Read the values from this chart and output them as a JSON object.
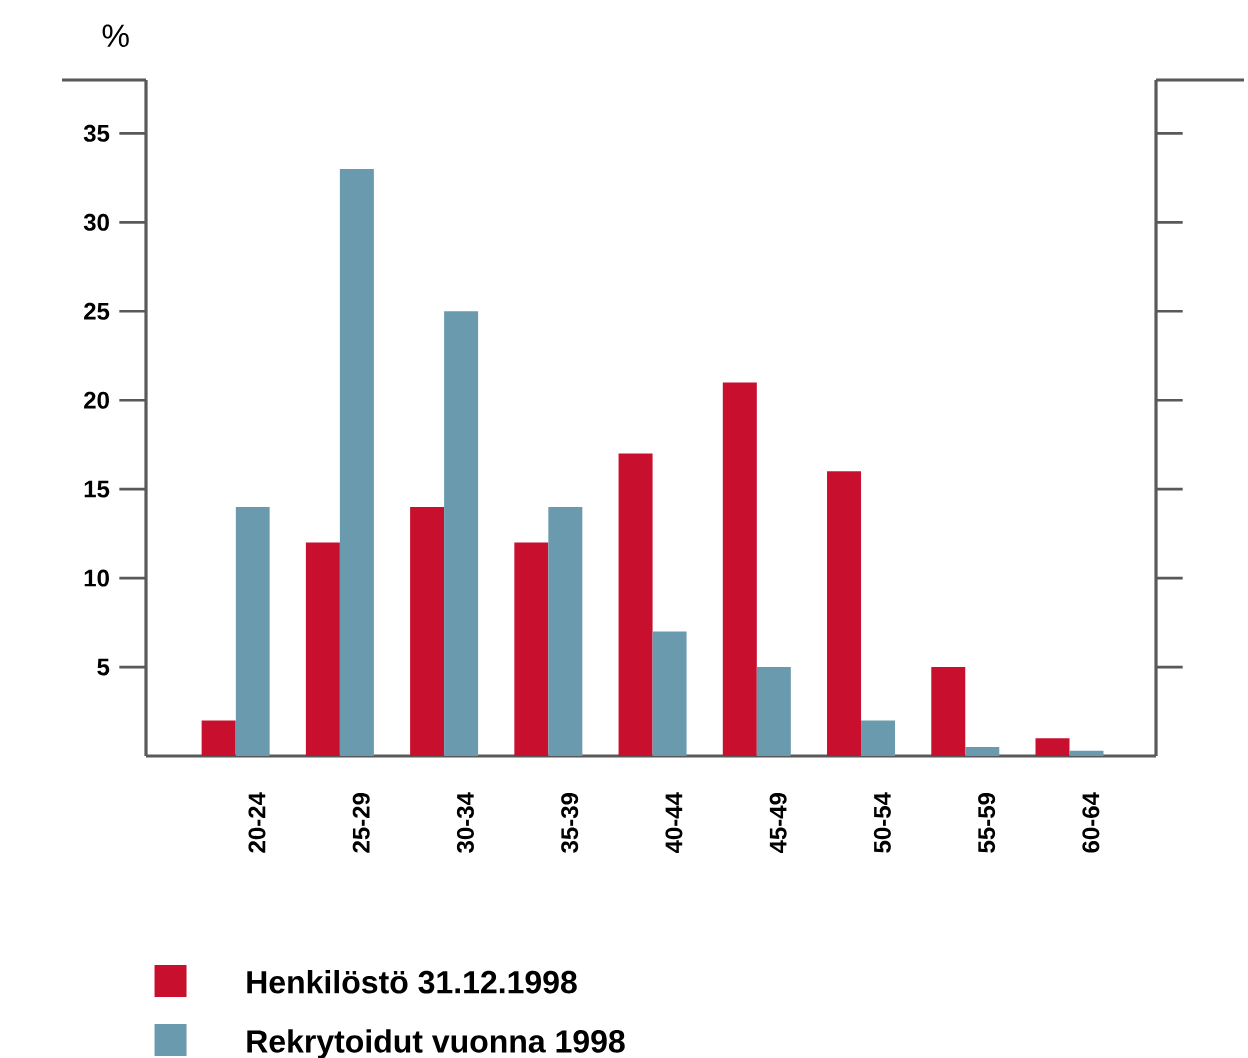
{
  "chart_data": {
    "type": "bar",
    "ylabel": "%",
    "categories": [
      "20-24",
      "25-29",
      "30-34",
      "35-39",
      "40-44",
      "45-49",
      "50-54",
      "55-59",
      "60-64"
    ],
    "series": [
      {
        "name": "Henkilöstö 31.12.1998",
        "color": "#c8102e",
        "values": [
          2,
          12,
          14,
          12,
          17,
          21,
          16,
          5,
          1
        ]
      },
      {
        "name": "Rekrytoidut vuonna 1998",
        "color": "#6a9aad",
        "values": [
          14,
          33,
          25,
          14,
          7,
          5,
          2,
          0.5,
          0.3
        ]
      }
    ],
    "ylim": [
      0,
      38
    ],
    "yticks": [
      5,
      10,
      15,
      20,
      25,
      30,
      35
    ],
    "legend": "bottom left",
    "grid": false
  }
}
